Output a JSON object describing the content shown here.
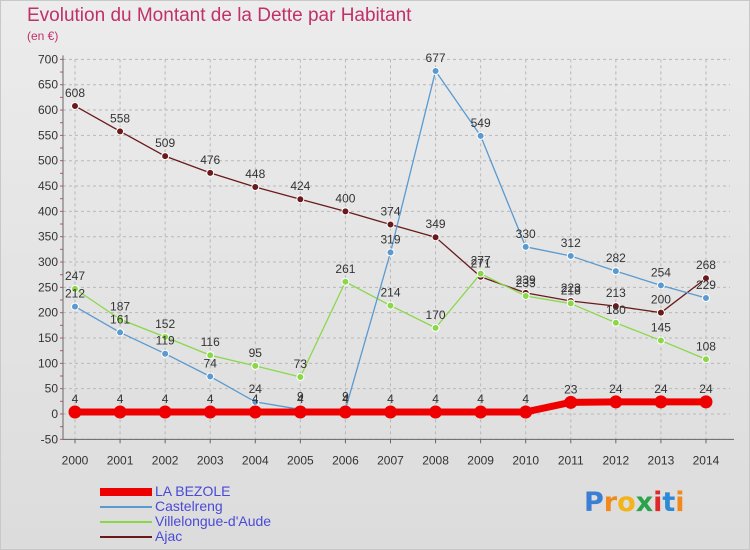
{
  "title": "Evolution du Montant de la Dette par Habitant",
  "subtitle": "(en €)",
  "logo": {
    "text": "Proxiti",
    "letters": [
      "P",
      "r",
      "o",
      "x",
      "i",
      "t",
      "i"
    ],
    "colors": [
      "#3a7fd4",
      "#f08a1c",
      "#f2b418",
      "#2ca34a",
      "#e0282a",
      "#2f8ad6",
      "#f08a1c"
    ]
  },
  "chart_data": {
    "type": "line",
    "title": "Evolution du Montant de la Dette par Habitant",
    "ylabel": "(en €)",
    "xlabel": "",
    "x": [
      "2000",
      "2001",
      "2002",
      "2003",
      "2004",
      "2005",
      "2006",
      "2007",
      "2008",
      "2009",
      "2010",
      "2011",
      "2012",
      "2013",
      "2014"
    ],
    "ylim": [
      -50,
      700
    ],
    "yticks": [
      "-50",
      "0",
      "50",
      "100",
      "150",
      "200",
      "250",
      "300",
      "350",
      "400",
      "450",
      "500",
      "550",
      "600",
      "650",
      "700"
    ],
    "grid": "horizontal dashed",
    "legend_position": "bottom-left",
    "series": [
      {
        "name": "LA BEZOLE",
        "color": "#ee0000",
        "values": [
          4,
          4,
          4,
          4,
          4,
          4,
          4,
          4,
          4,
          4,
          4,
          23,
          24,
          24,
          24
        ],
        "labels": [
          "4",
          "4",
          "4",
          "4",
          "4",
          "4",
          "4",
          "4",
          "4",
          "4",
          "4",
          "23",
          "24",
          "24",
          "24"
        ]
      },
      {
        "name": "Castelreng",
        "color": "#5a9ad0",
        "values": [
          212,
          161,
          119,
          74,
          24,
          9,
          9,
          319,
          677,
          549,
          330,
          312,
          282,
          254,
          229
        ],
        "labels": [
          "212",
          "161",
          "119",
          "74",
          "24",
          "9",
          "9",
          "319",
          "677",
          "549",
          "330",
          "312",
          "282",
          "254",
          "229"
        ]
      },
      {
        "name": "Villelongue-d'Aude",
        "color": "#8ad84a",
        "values": [
          247,
          187,
          152,
          116,
          95,
          73,
          261,
          214,
          170,
          277,
          233,
          218,
          180,
          145,
          108
        ],
        "labels": [
          "247",
          "187",
          "152",
          "116",
          "95",
          "73",
          "261",
          "214",
          "170",
          "277",
          "233",
          "218",
          "180",
          "145",
          "108"
        ]
      },
      {
        "name": "Ajac",
        "color": "#6a1a1a",
        "values": [
          608,
          558,
          509,
          476,
          448,
          424,
          400,
          374,
          349,
          271,
          239,
          223,
          213,
          200,
          268
        ],
        "labels": [
          "608",
          "558",
          "509",
          "476",
          "448",
          "424",
          "400",
          "374",
          "349",
          "271",
          "239",
          "223",
          "213",
          "200",
          "268"
        ]
      }
    ]
  }
}
